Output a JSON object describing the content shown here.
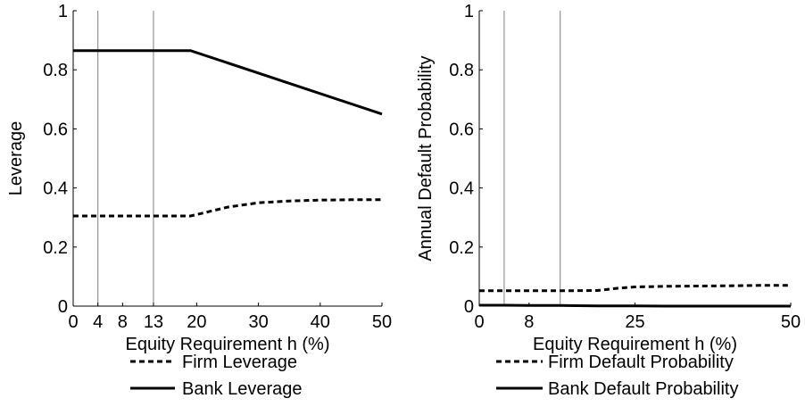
{
  "chart_data": [
    {
      "type": "line",
      "xlabel": "Equity Requirement h (%)",
      "ylabel": "Leverage",
      "xlim": [
        0,
        50
      ],
      "ylim": [
        0,
        1
      ],
      "xticks": [
        0,
        4,
        8,
        13,
        20,
        30,
        40,
        50
      ],
      "yticks": [
        0,
        0.2,
        0.4,
        0.6,
        0.8,
        1
      ],
      "ytick_labels": [
        "0",
        "0.2",
        "0.4",
        "0.6",
        "0.8",
        "1"
      ],
      "vlines": [
        4,
        13
      ],
      "legend_position": "below",
      "series": [
        {
          "name": "Firm Leverage",
          "style": "dashed",
          "x": [
            0,
            4,
            8,
            13,
            19,
            20,
            22,
            25,
            30,
            35,
            40,
            45,
            50
          ],
          "y": [
            0.305,
            0.305,
            0.305,
            0.305,
            0.305,
            0.31,
            0.32,
            0.335,
            0.35,
            0.356,
            0.359,
            0.36,
            0.36
          ]
        },
        {
          "name": "Bank Leverage",
          "style": "solid",
          "x": [
            0,
            4,
            8,
            13,
            19,
            50
          ],
          "y": [
            0.865,
            0.865,
            0.865,
            0.865,
            0.865,
            0.65
          ]
        }
      ]
    },
    {
      "type": "line",
      "xlabel": "Equity Requirement h (%)",
      "ylabel": "Annual Default Probability",
      "xlim": [
        0,
        50
      ],
      "ylim": [
        0,
        1
      ],
      "xticks": [
        0,
        8,
        25,
        50
      ],
      "yticks": [
        0,
        0.2,
        0.4,
        0.6,
        0.8,
        1
      ],
      "ytick_labels": [
        "0",
        "0.2",
        "0.4",
        "0.6",
        "0.8",
        "1"
      ],
      "vlines": [
        4,
        13
      ],
      "legend_position": "below",
      "series": [
        {
          "name": "Firm Default Probability",
          "style": "dashed",
          "x": [
            0,
            4,
            8,
            13,
            19,
            22,
            25,
            30,
            35,
            40,
            45,
            50
          ],
          "y": [
            0.052,
            0.052,
            0.052,
            0.052,
            0.053,
            0.06,
            0.065,
            0.067,
            0.068,
            0.069,
            0.07,
            0.07
          ]
        },
        {
          "name": "Bank Default Probability",
          "style": "solid",
          "x": [
            0,
            4,
            8,
            13,
            19,
            25,
            30,
            40,
            50
          ],
          "y": [
            0.003,
            0.003,
            0.002,
            0.002,
            0.001,
            0.0005,
            0.0,
            0.0,
            0.0
          ]
        }
      ]
    }
  ]
}
